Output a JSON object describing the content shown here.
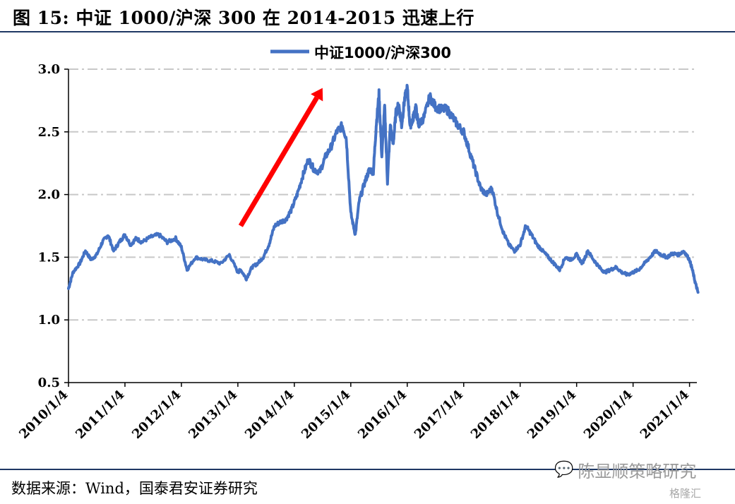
{
  "figure": {
    "title": "图 15:  中证 1000/沪深 300 在 2014-2015 迅速上行",
    "source": "数据来源：Wind，国泰君安证券研究",
    "watermark": "陈显顺策略研究",
    "watermark2": "格隆汇"
  },
  "chart_data": {
    "type": "line",
    "title": "",
    "xlabel": "",
    "ylabel": "",
    "ylim": [
      0.5,
      3.0
    ],
    "yticks": [
      "0.5",
      "1.0",
      "1.5",
      "2.0",
      "2.5",
      "3.0"
    ],
    "xticks": [
      "2010/1/4",
      "2011/1/4",
      "2012/1/4",
      "2013/1/4",
      "2014/1/4",
      "2015/1/4",
      "2016/1/4",
      "2017/1/4",
      "2018/1/4",
      "2019/1/4",
      "2020/1/4",
      "2021/1/4"
    ],
    "grid": "horizontal dash-dot",
    "legend": "top-center",
    "color": "#4472c4",
    "arrow_color": "#ff0000",
    "series": [
      {
        "name": "中证1000/沪深300",
        "x": [
          2010.0,
          2010.08,
          2010.2,
          2010.3,
          2010.4,
          2010.5,
          2010.6,
          2010.7,
          2010.8,
          2010.9,
          2011.0,
          2011.1,
          2011.2,
          2011.3,
          2011.45,
          2011.6,
          2011.75,
          2011.9,
          2012.0,
          2012.1,
          2012.25,
          2012.4,
          2012.55,
          2012.7,
          2012.85,
          2013.0,
          2013.05,
          2013.15,
          2013.25,
          2013.35,
          2013.45,
          2013.55,
          2013.65,
          2013.75,
          2013.85,
          2013.95,
          2014.05,
          2014.15,
          2014.25,
          2014.35,
          2014.45,
          2014.55,
          2014.65,
          2014.75,
          2014.85,
          2014.92,
          2015.0,
          2015.08,
          2015.15,
          2015.25,
          2015.33,
          2015.4,
          2015.45,
          2015.5,
          2015.55,
          2015.6,
          2015.65,
          2015.7,
          2015.75,
          2015.8,
          2015.85,
          2015.9,
          2015.95,
          2016.0,
          2016.05,
          2016.1,
          2016.15,
          2016.2,
          2016.3,
          2016.4,
          2016.5,
          2016.6,
          2016.7,
          2016.8,
          2016.9,
          2017.0,
          2017.1,
          2017.2,
          2017.3,
          2017.4,
          2017.5,
          2017.6,
          2017.7,
          2017.8,
          2017.9,
          2018.0,
          2018.1,
          2018.2,
          2018.3,
          2018.4,
          2018.5,
          2018.6,
          2018.7,
          2018.8,
          2018.9,
          2019.0,
          2019.1,
          2019.2,
          2019.3,
          2019.4,
          2019.5,
          2019.6,
          2019.7,
          2019.8,
          2019.9,
          2020.0,
          2020.1,
          2020.2,
          2020.3,
          2020.4,
          2020.5,
          2020.6,
          2020.7,
          2020.8,
          2020.9,
          2021.0,
          2021.05,
          2021.1,
          2021.15
        ],
        "y": [
          1.25,
          1.38,
          1.45,
          1.55,
          1.48,
          1.52,
          1.62,
          1.68,
          1.55,
          1.62,
          1.68,
          1.6,
          1.65,
          1.62,
          1.66,
          1.68,
          1.62,
          1.65,
          1.58,
          1.4,
          1.5,
          1.48,
          1.47,
          1.45,
          1.52,
          1.38,
          1.4,
          1.33,
          1.42,
          1.45,
          1.5,
          1.6,
          1.75,
          1.78,
          1.8,
          1.88,
          2.0,
          2.15,
          2.28,
          2.2,
          2.18,
          2.3,
          2.38,
          2.5,
          2.55,
          2.45,
          1.85,
          1.68,
          1.95,
          2.1,
          2.2,
          2.18,
          2.55,
          2.8,
          2.3,
          2.7,
          2.1,
          2.55,
          2.4,
          2.65,
          2.72,
          2.55,
          2.75,
          2.85,
          2.55,
          2.6,
          2.7,
          2.55,
          2.62,
          2.78,
          2.7,
          2.68,
          2.68,
          2.62,
          2.55,
          2.5,
          2.35,
          2.2,
          2.05,
          2.0,
          2.05,
          1.85,
          1.7,
          1.6,
          1.55,
          1.6,
          1.75,
          1.68,
          1.6,
          1.55,
          1.5,
          1.45,
          1.4,
          1.5,
          1.48,
          1.52,
          1.45,
          1.55,
          1.48,
          1.42,
          1.38,
          1.4,
          1.42,
          1.38,
          1.36,
          1.38,
          1.4,
          1.45,
          1.5,
          1.55,
          1.52,
          1.5,
          1.53,
          1.52,
          1.55,
          1.48,
          1.4,
          1.3,
          1.22
        ]
      }
    ]
  }
}
